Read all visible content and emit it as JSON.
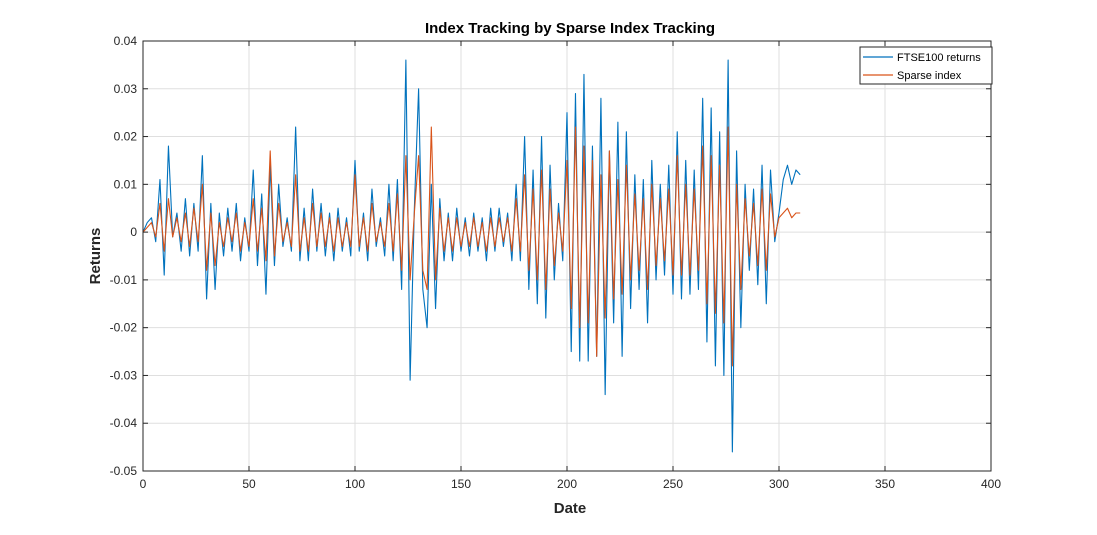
{
  "chart_data": {
    "type": "line",
    "title": "Index Tracking by Sparse Index Tracking",
    "xlabel": "Date",
    "ylabel": "Returns",
    "xlim": [
      0,
      400
    ],
    "ylim": [
      -0.05,
      0.04
    ],
    "xticks": [
      0,
      50,
      100,
      150,
      200,
      250,
      300,
      350,
      400
    ],
    "yticks": [
      -0.05,
      -0.04,
      -0.03,
      -0.02,
      -0.01,
      0,
      0.01,
      0.02,
      0.03,
      0.04
    ],
    "xtick_labels": [
      "0",
      "50",
      "100",
      "150",
      "200",
      "250",
      "300",
      "350",
      "400"
    ],
    "ytick_labels": [
      "-0.05",
      "-0.04",
      "-0.03",
      "-0.02",
      "-0.01",
      "0",
      "0.01",
      "0.02",
      "0.03",
      "0.04"
    ],
    "grid": true,
    "legend_position": "top-right",
    "series": [
      {
        "name": "FTSE100 returns",
        "color": "#0072BD",
        "x_start": 0,
        "x_step": 2,
        "values": [
          0.0,
          0.002,
          0.003,
          -0.002,
          0.011,
          -0.009,
          0.018,
          -0.001,
          0.004,
          -0.004,
          0.007,
          -0.005,
          0.006,
          -0.004,
          0.016,
          -0.014,
          0.006,
          -0.012,
          0.004,
          -0.005,
          0.005,
          -0.004,
          0.006,
          -0.006,
          0.003,
          -0.004,
          0.013,
          -0.007,
          0.008,
          -0.013,
          0.014,
          -0.007,
          0.01,
          -0.003,
          0.003,
          -0.004,
          0.022,
          -0.006,
          0.005,
          -0.006,
          0.009,
          -0.004,
          0.006,
          -0.005,
          0.004,
          -0.006,
          0.005,
          -0.004,
          0.003,
          -0.005,
          0.015,
          -0.004,
          0.004,
          -0.006,
          0.009,
          -0.003,
          0.003,
          -0.005,
          0.01,
          -0.006,
          0.011,
          -0.012,
          0.036,
          -0.031,
          0.005,
          0.03,
          -0.012,
          -0.02,
          0.01,
          -0.016,
          0.007,
          -0.006,
          0.004,
          -0.006,
          0.005,
          -0.004,
          0.003,
          -0.005,
          0.004,
          -0.004,
          0.003,
          -0.006,
          0.005,
          -0.004,
          0.005,
          -0.003,
          0.004,
          -0.006,
          0.01,
          -0.006,
          0.02,
          -0.012,
          0.013,
          -0.015,
          0.02,
          -0.018,
          0.014,
          -0.01,
          0.006,
          -0.006,
          0.025,
          -0.025,
          0.029,
          -0.027,
          0.033,
          -0.027,
          0.018,
          -0.026,
          0.028,
          -0.034,
          0.017,
          -0.019,
          0.023,
          -0.026,
          0.021,
          -0.016,
          0.012,
          -0.012,
          0.011,
          -0.019,
          0.015,
          -0.01,
          0.01,
          -0.009,
          0.014,
          -0.013,
          0.021,
          -0.014,
          0.015,
          -0.013,
          0.013,
          -0.012,
          0.028,
          -0.023,
          0.026,
          -0.028,
          0.021,
          -0.03,
          0.036,
          -0.046,
          0.017,
          -0.02,
          0.01,
          -0.008,
          0.009,
          -0.011,
          0.014,
          -0.015,
          0.013,
          -0.002,
          0.004,
          0.011,
          0.014,
          0.01,
          0.013,
          0.012
        ]
      },
      {
        "name": "Sparse index",
        "color": "#D95319",
        "x_start": 0,
        "x_step": 2,
        "values": [
          0.0,
          0.001,
          0.002,
          -0.001,
          0.006,
          -0.004,
          0.007,
          -0.001,
          0.003,
          -0.002,
          0.004,
          -0.003,
          0.005,
          -0.002,
          0.01,
          -0.008,
          0.004,
          -0.007,
          0.002,
          -0.003,
          0.003,
          -0.002,
          0.004,
          -0.004,
          0.002,
          -0.003,
          0.007,
          -0.004,
          0.005,
          -0.006,
          0.017,
          -0.005,
          0.006,
          -0.002,
          0.002,
          -0.003,
          0.012,
          -0.004,
          0.003,
          -0.004,
          0.006,
          -0.003,
          0.004,
          -0.003,
          0.003,
          -0.004,
          0.003,
          -0.003,
          0.002,
          -0.003,
          0.012,
          -0.003,
          0.003,
          -0.004,
          0.006,
          -0.002,
          0.002,
          -0.003,
          0.006,
          -0.004,
          0.008,
          -0.008,
          0.016,
          -0.01,
          0.004,
          0.016,
          -0.008,
          -0.012,
          0.022,
          -0.01,
          0.005,
          -0.004,
          0.003,
          -0.004,
          0.003,
          -0.003,
          0.002,
          -0.003,
          0.003,
          -0.003,
          0.002,
          -0.004,
          0.003,
          -0.003,
          0.003,
          -0.002,
          0.003,
          -0.004,
          0.007,
          -0.004,
          0.012,
          -0.008,
          0.009,
          -0.01,
          0.013,
          -0.012,
          0.009,
          -0.007,
          0.004,
          -0.004,
          0.015,
          -0.016,
          0.022,
          -0.02,
          0.018,
          -0.019,
          0.015,
          -0.026,
          0.012,
          -0.018,
          0.017,
          -0.014,
          0.011,
          -0.013,
          0.014,
          -0.01,
          0.008,
          -0.008,
          0.007,
          -0.012,
          0.01,
          -0.007,
          0.007,
          -0.006,
          0.009,
          -0.009,
          0.016,
          -0.009,
          0.01,
          -0.009,
          0.009,
          -0.008,
          0.018,
          -0.015,
          0.016,
          -0.017,
          0.014,
          -0.019,
          0.022,
          -0.028,
          0.01,
          -0.012,
          0.007,
          -0.005,
          0.006,
          -0.007,
          0.009,
          -0.008,
          0.008,
          -0.001,
          0.003,
          0.004,
          0.005,
          0.003,
          0.004,
          0.004
        ]
      }
    ]
  }
}
